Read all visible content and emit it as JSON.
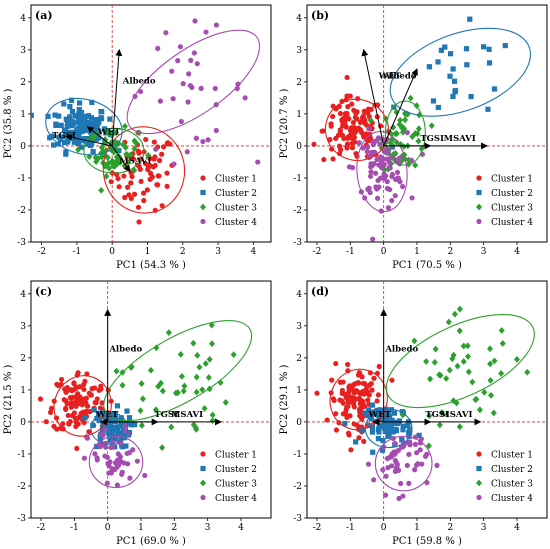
{
  "colors": {
    "cluster1": "#e8201f",
    "cluster2": "#1f77b4",
    "cluster3": "#2ca02c",
    "cluster4": "#a54db0",
    "refline": "#e8201f"
  },
  "legend_markers": [
    "circle",
    "square",
    "diamond",
    "circle"
  ],
  "chart_data": [
    {
      "type": "scatter",
      "panel_label": "(a)",
      "xlabel": "PC1 (54.3 % )",
      "ylabel": "PC2 (35.8 % )",
      "xlim": [
        -2.3,
        4.5
      ],
      "ylim": [
        -3,
        4.4
      ],
      "xticks": [
        -2,
        -1,
        0,
        1,
        2,
        3,
        4
      ],
      "yticks": [
        -3,
        -2,
        -1,
        0,
        1,
        2,
        3,
        4
      ],
      "legend": [
        "Cluster 1",
        "Cluster 2",
        "Cluster 3",
        "Cluster 4"
      ],
      "legend_position": "lower-right",
      "loadings": [
        {
          "label": "Albedo",
          "x": 0.2,
          "y": 3.0,
          "label_dx": 0.1,
          "label_dy": -1.05
        },
        {
          "label": "TGSI",
          "x": -1.3,
          "y": 0.3,
          "label_dx": -0.4,
          "label_dy": -0.05
        },
        {
          "label": "WET",
          "x": -0.7,
          "y": 0.6,
          "label_dx": 0.3,
          "label_dy": -0.25
        },
        {
          "label": "MSAVI",
          "x": 0.5,
          "y": -0.8,
          "label_dx": -0.3,
          "label_dy": 0.25
        }
      ],
      "series": [
        {
          "name": "Cluster 1",
          "center": [
            0.9,
            -0.8
          ],
          "spread": [
            0.45,
            0.6
          ],
          "count": 70,
          "ellipse": {
            "cx": 0.9,
            "cy": -0.75,
            "rx": 1.15,
            "ry": 1.35,
            "angle": 10
          }
        },
        {
          "name": "Cluster 2",
          "center": [
            -0.9,
            0.55
          ],
          "spread": [
            0.4,
            0.35
          ],
          "count": 150,
          "ellipse": {
            "cx": -0.8,
            "cy": 0.6,
            "rx": 1.1,
            "ry": 0.85,
            "angle": -15
          }
        },
        {
          "name": "Cluster 3",
          "center": [
            0.05,
            -0.2
          ],
          "spread": [
            0.35,
            0.35
          ],
          "count": 60,
          "ellipse": {
            "cx": 0.05,
            "cy": -0.15,
            "rx": 0.85,
            "ry": 0.7,
            "angle": 0
          }
        },
        {
          "name": "Cluster 4",
          "center": [
            2.1,
            1.8
          ],
          "spread": [
            0.9,
            0.9
          ],
          "count": 35,
          "ellipse": {
            "cx": 2.3,
            "cy": 2.0,
            "rx": 2.2,
            "ry": 1.0,
            "angle": 35
          }
        }
      ]
    },
    {
      "type": "scatter",
      "panel_label": "(b)",
      "xlabel": "PC1 (70.5 % )",
      "ylabel": "PC2 (20.7 % )",
      "xlim": [
        -2.3,
        4.9
      ],
      "ylim": [
        -3,
        4.4
      ],
      "xticks": [
        -2,
        -1,
        0,
        1,
        2,
        3,
        4
      ],
      "yticks": [
        -3,
        -2,
        -1,
        0,
        1,
        2,
        3,
        4
      ],
      "legend": [
        "Cluster 1",
        "Cluster 2",
        "Cluster 3",
        "Cluster 4"
      ],
      "legend_position": "lower-right",
      "loadings": [
        {
          "label": "Albedo",
          "x": -0.6,
          "y": 3.0,
          "label_dx": 0.6,
          "label_dy": -0.9
        },
        {
          "label": "WET",
          "x": 1.0,
          "y": 2.4,
          "label_dx": -1.15,
          "label_dy": -0.3
        },
        {
          "label": "TGSI",
          "x": 1.4,
          "y": 0.0,
          "label_dx": -0.3,
          "label_dy": 0.15
        },
        {
          "label": "MSAVI",
          "x": 3.1,
          "y": 0.0,
          "label_dx": -1.3,
          "label_dy": 0.15
        }
      ],
      "series": [
        {
          "name": "Cluster 1",
          "center": [
            -0.9,
            0.5
          ],
          "spread": [
            0.45,
            0.5
          ],
          "count": 110,
          "ellipse": {
            "cx": -0.8,
            "cy": 0.5,
            "rx": 0.95,
            "ry": 0.95,
            "angle": -20
          }
        },
        {
          "name": "Cluster 2",
          "center": [
            2.3,
            2.0
          ],
          "spread": [
            0.9,
            0.8
          ],
          "count": 25,
          "ellipse": {
            "cx": 2.3,
            "cy": 2.3,
            "rx": 2.2,
            "ry": 1.2,
            "angle": 20
          }
        },
        {
          "name": "Cluster 3",
          "center": [
            0.6,
            0.3
          ],
          "spread": [
            0.35,
            0.5
          ],
          "count": 55,
          "ellipse": {
            "cx": 0.65,
            "cy": 0.4,
            "rx": 0.6,
            "ry": 1.0,
            "angle": 0
          }
        },
        {
          "name": "Cluster 4",
          "center": [
            -0.1,
            -0.7
          ],
          "spread": [
            0.4,
            0.55
          ],
          "count": 90,
          "ellipse": {
            "cx": -0.05,
            "cy": -0.8,
            "rx": 0.75,
            "ry": 1.25,
            "angle": 5
          }
        }
      ]
    },
    {
      "type": "scatter",
      "panel_label": "(c)",
      "xlabel": "PC1 (69.0 % )",
      "ylabel": "PC2 (21.5 % )",
      "xlim": [
        -2.3,
        4.9
      ],
      "ylim": [
        -3,
        4.4
      ],
      "xticks": [
        -2,
        -1,
        0,
        1,
        2,
        3,
        4
      ],
      "yticks": [
        -3,
        -2,
        -1,
        0,
        1,
        2,
        3,
        4
      ],
      "legend": [
        "Cluster 1",
        "Cluster 2",
        "Cluster 3",
        "Cluster 4"
      ],
      "legend_position": "lower-right",
      "loadings": [
        {
          "label": "Albedo",
          "x": 0.0,
          "y": 3.5,
          "label_dx": 0.05,
          "label_dy": -1.3
        },
        {
          "label": "WET",
          "x": -0.2,
          "y": 0.0,
          "label_dx": -0.15,
          "label_dy": 0.15
        },
        {
          "label": "TGSI",
          "x": 1.5,
          "y": 0.0,
          "label_dx": -0.1,
          "label_dy": 0.15
        },
        {
          "label": "MSAVI",
          "x": 3.4,
          "y": 0.0,
          "label_dx": -1.5,
          "label_dy": 0.15
        }
      ],
      "series": [
        {
          "name": "Cluster 1",
          "center": [
            -0.85,
            0.6
          ],
          "spread": [
            0.4,
            0.5
          ],
          "count": 120,
          "ellipse": {
            "cx": -0.75,
            "cy": 0.5,
            "rx": 0.85,
            "ry": 0.95,
            "angle": -20
          }
        },
        {
          "name": "Cluster 2",
          "center": [
            0.1,
            -0.2
          ],
          "spread": [
            0.3,
            0.3
          ],
          "count": 80,
          "ellipse": {
            "cx": 0.05,
            "cy": -0.2,
            "rx": 0.55,
            "ry": 0.5,
            "angle": 0
          }
        },
        {
          "name": "Cluster 3",
          "center": [
            2.0,
            1.2
          ],
          "spread": [
            0.8,
            0.9
          ],
          "count": 45,
          "ellipse": {
            "cx": 2.1,
            "cy": 1.6,
            "rx": 2.5,
            "ry": 1.0,
            "angle": 30
          }
        },
        {
          "name": "Cluster 4",
          "center": [
            0.2,
            -1.2
          ],
          "spread": [
            0.4,
            0.5
          ],
          "count": 55,
          "ellipse": {
            "cx": 0.25,
            "cy": -1.25,
            "rx": 0.8,
            "ry": 0.8,
            "angle": 0
          }
        }
      ]
    },
    {
      "type": "scatter",
      "panel_label": "(d)",
      "xlabel": "PC1 (59.8 % )",
      "ylabel": "PC2 (29.1 % )",
      "xlim": [
        -2.3,
        4.9
      ],
      "ylim": [
        -3,
        4.4
      ],
      "xticks": [
        -2,
        -1,
        0,
        1,
        2,
        3,
        4
      ],
      "yticks": [
        -3,
        -2,
        -1,
        0,
        1,
        2,
        3,
        4
      ],
      "legend": [
        "Cluster 1",
        "Cluster 2",
        "Cluster 3",
        "Cluster 4"
      ],
      "legend_position": "lower-right",
      "loadings": [
        {
          "label": "Albedo",
          "x": 0.0,
          "y": 3.5,
          "label_dx": 0.05,
          "label_dy": -1.3
        },
        {
          "label": "WET",
          "x": -0.3,
          "y": 0.0,
          "label_dx": -0.15,
          "label_dy": 0.15
        },
        {
          "label": "TGSI",
          "x": 1.4,
          "y": 0.0,
          "label_dx": -0.15,
          "label_dy": 0.15
        },
        {
          "label": "MSAVI",
          "x": 2.9,
          "y": 0.0,
          "label_dx": -1.2,
          "label_dy": 0.15
        }
      ],
      "series": [
        {
          "name": "Cluster 1",
          "center": [
            -0.8,
            0.7
          ],
          "spread": [
            0.4,
            0.5
          ],
          "count": 120,
          "ellipse": {
            "cx": -0.75,
            "cy": 0.7,
            "rx": 0.85,
            "ry": 0.95,
            "angle": -20
          }
        },
        {
          "name": "Cluster 2",
          "center": [
            0.15,
            -0.1
          ],
          "spread": [
            0.35,
            0.3
          ],
          "count": 80,
          "ellipse": {
            "cx": 0.15,
            "cy": -0.2,
            "rx": 0.7,
            "ry": 0.6,
            "angle": 0
          }
        },
        {
          "name": "Cluster 3",
          "center": [
            2.5,
            1.6
          ],
          "spread": [
            0.9,
            0.8
          ],
          "count": 45,
          "ellipse": {
            "cx": 2.3,
            "cy": 1.9,
            "rx": 2.4,
            "ry": 1.1,
            "angle": 25
          }
        },
        {
          "name": "Cluster 4",
          "center": [
            0.5,
            -1.2
          ],
          "spread": [
            0.4,
            0.5
          ],
          "count": 55,
          "ellipse": {
            "cx": 0.6,
            "cy": -1.3,
            "rx": 0.85,
            "ry": 0.85,
            "angle": 0
          }
        }
      ]
    }
  ]
}
